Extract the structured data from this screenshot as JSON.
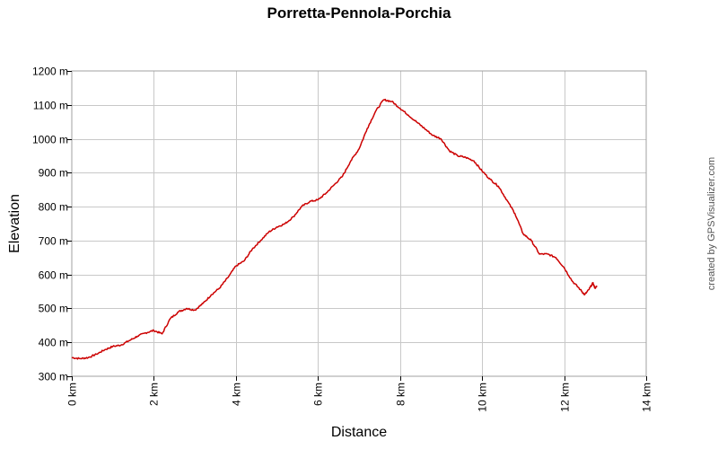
{
  "chart_data": {
    "type": "line",
    "title": "Porretta-Pennola-Porchia",
    "xlabel": "Distance",
    "ylabel": "Elevation",
    "credit": "created by GPSVisualizer.com",
    "xlim": [
      0,
      14
    ],
    "ylim": [
      300,
      1200
    ],
    "x_unit": "km",
    "y_unit": "m",
    "x_ticks": [
      "0 km",
      "2 km",
      "4 km",
      "6 km",
      "8 km",
      "10 km",
      "12 km",
      "14 km"
    ],
    "y_ticks": [
      "300 m",
      "400 m",
      "500 m",
      "600 m",
      "700 m",
      "800 m",
      "900 m",
      "1000 m",
      "1100 m",
      "1200 m"
    ],
    "grid": true,
    "line_color": "#cc0000",
    "series": [
      {
        "x": [
          0,
          0.2,
          0.4,
          0.6,
          0.8,
          1.0,
          1.2,
          1.4,
          1.6,
          1.8,
          2.0,
          2.2,
          2.4,
          2.6,
          2.8,
          3.0,
          3.2,
          3.4,
          3.6,
          3.8,
          4.0,
          4.2,
          4.4,
          4.6,
          4.8,
          5.0,
          5.2,
          5.4,
          5.6,
          5.8,
          6.0,
          6.2,
          6.4,
          6.6,
          6.8,
          7.0,
          7.2,
          7.4,
          7.6,
          7.8,
          8.0,
          8.2,
          8.4,
          8.6,
          8.8,
          9.0,
          9.2,
          9.4,
          9.6,
          9.8,
          10.0,
          10.2,
          10.4,
          10.6,
          10.8,
          11.0,
          11.2,
          11.4,
          11.6,
          11.8,
          12.0,
          12.2,
          12.4,
          12.5,
          12.6,
          12.7,
          12.75,
          12.8
        ],
        "y": [
          355,
          352,
          355,
          365,
          378,
          388,
          392,
          405,
          418,
          428,
          435,
          425,
          470,
          490,
          500,
          495,
          515,
          540,
          560,
          590,
          625,
          640,
          675,
          700,
          725,
          740,
          750,
          770,
          800,
          815,
          820,
          840,
          865,
          890,
          935,
          970,
          1030,
          1080,
          1115,
          1110,
          1090,
          1070,
          1050,
          1030,
          1010,
          1000,
          965,
          950,
          945,
          935,
          905,
          880,
          860,
          820,
          780,
          720,
          700,
          660,
          660,
          650,
          620,
          580,
          555,
          540,
          555,
          575,
          560,
          565
        ]
      }
    ]
  }
}
